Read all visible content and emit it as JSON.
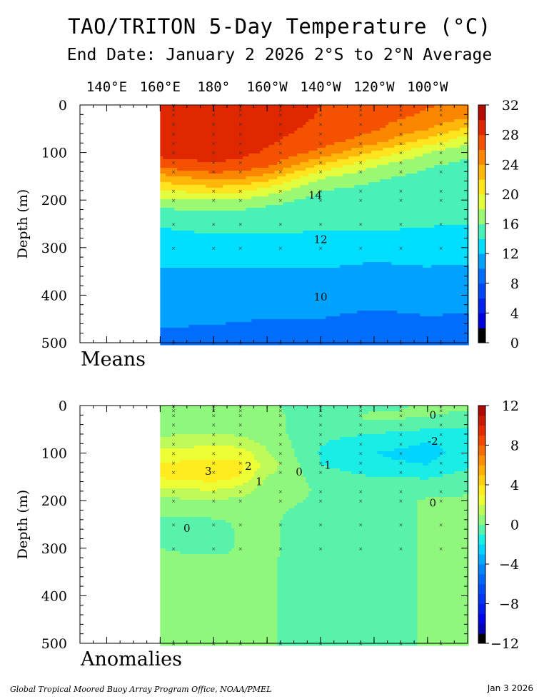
{
  "title": "TAO/TRITON 5-Day Temperature (°C)",
  "subtitle": "End Date: January 2 2026  2°S to 2°N Average",
  "footer_left": "Global Tropical Moored Buoy Array Program Office, NOAA/PMEL",
  "footer_right": "Jan  3 2026",
  "chart_data": [
    {
      "type": "heatmap",
      "panel_label": "Means",
      "xlabel": "",
      "ylabel": "Depth (m)",
      "x_tick_labels": [
        "140°E",
        "160°E",
        "180°",
        "160°W",
        "140°W",
        "120°W",
        "100°W"
      ],
      "x_ticks_lon": [
        140,
        160,
        180,
        200,
        220,
        240,
        260
      ],
      "xlim": [
        130,
        275
      ],
      "data_xlim": [
        160,
        275
      ],
      "y_ticks": [
        0,
        100,
        200,
        300,
        400,
        500
      ],
      "ylim": [
        0,
        500
      ],
      "colorbar_ticks": [
        0,
        4,
        8,
        12,
        16,
        20,
        24,
        28,
        32
      ],
      "colorbar_range": [
        0,
        32
      ],
      "grid": [
        [
          160,
          [
            29.8,
            29.6,
            29.4,
            29.2,
            28.6,
            27.2,
            23.4,
            20.6,
            17.4,
            15.4,
            14.2,
            13.6,
            12.9,
            12.3,
            11.9,
            11.5,
            11.1,
            10.6,
            10.3,
            9.9,
            9.2
          ]
        ],
        [
          180,
          [
            29.6,
            29.5,
            29.3,
            29.1,
            28.7,
            27.9,
            25.2,
            21.6,
            18.1,
            15.8,
            14.6,
            13.9,
            13.1,
            12.4,
            11.9,
            11.4,
            11.0,
            10.5,
            10.2,
            9.8,
            9.1
          ]
        ],
        [
          190,
          [
            29.3,
            29.2,
            29.0,
            28.8,
            28.4,
            27.6,
            24.7,
            21.2,
            17.8,
            15.6,
            14.6,
            13.9,
            13.0,
            12.4,
            11.9,
            11.4,
            10.9,
            10.5,
            10.1,
            9.7,
            9.0
          ]
        ],
        [
          200,
          [
            28.9,
            28.8,
            28.6,
            28.3,
            27.8,
            26.7,
            23.4,
            19.8,
            16.8,
            15.2,
            14.5,
            13.9,
            13.1,
            12.4,
            11.9,
            11.4,
            10.9,
            10.4,
            10.0,
            9.6,
            9.0
          ]
        ],
        [
          220,
          [
            28.0,
            27.9,
            27.6,
            27.1,
            25.4,
            22.0,
            18.5,
            16.3,
            15.3,
            14.7,
            14.3,
            13.8,
            13.0,
            12.4,
            11.9,
            11.4,
            10.9,
            10.4,
            10.0,
            9.6,
            9.0
          ]
        ],
        [
          240,
          [
            27.0,
            26.8,
            26.3,
            24.9,
            21.8,
            18.4,
            16.4,
            15.5,
            15.0,
            14.6,
            14.3,
            13.8,
            13.0,
            12.1,
            11.6,
            11.1,
            10.6,
            10.1,
            9.6,
            9.2,
            8.6
          ]
        ],
        [
          260,
          [
            26.2,
            25.6,
            24.1,
            21.4,
            18.0,
            16.2,
            15.5,
            15.0,
            14.6,
            14.3,
            14.1,
            13.7,
            12.9,
            12.3,
            11.8,
            11.3,
            10.8,
            10.3,
            9.9,
            9.5,
            9.0
          ]
        ],
        [
          275,
          [
            25.6,
            24.3,
            21.6,
            18.6,
            16.4,
            15.6,
            15.1,
            14.8,
            14.5,
            14.2,
            14.0,
            13.6,
            12.8,
            12.2,
            11.7,
            11.2,
            10.7,
            10.2,
            9.8,
            9.4,
            8.9
          ]
        ]
      ],
      "depths": [
        0,
        25,
        50,
        75,
        100,
        125,
        150,
        175,
        200,
        225,
        250,
        275,
        300,
        325,
        350,
        375,
        400,
        425,
        450,
        475,
        500
      ],
      "contour_labels": [
        {
          "text": "14",
          "lon": 218,
          "depth": 190
        },
        {
          "text": "12",
          "lon": 220,
          "depth": 283
        },
        {
          "text": "10",
          "lon": 220,
          "depth": 404
        }
      ],
      "mooring_longitudes": [
        165,
        180,
        190,
        205,
        220,
        235,
        250,
        265
      ]
    },
    {
      "type": "heatmap",
      "panel_label": "Anomalies",
      "xlabel": "",
      "ylabel": "Depth (m)",
      "x_tick_labels": [
        "140°E",
        "160°E",
        "180°",
        "160°W",
        "140°W",
        "120°W",
        "100°W"
      ],
      "xlim": [
        130,
        275
      ],
      "data_xlim": [
        160,
        275
      ],
      "y_ticks": [
        0,
        100,
        200,
        300,
        400,
        500
      ],
      "ylim": [
        0,
        500
      ],
      "colorbar_ticks": [
        12,
        8,
        4,
        0,
        -4,
        -8,
        -12
      ],
      "colorbar_range": [
        -12,
        12
      ],
      "grid": [
        [
          160,
          [
            0.2,
            0.3,
            0.5,
            1.4,
            2.3,
            3.2,
            3.1,
            1.8,
            0.7,
            0.1,
            -0.3,
            -0.5,
            0.0,
            0.2,
            0.2,
            0.2,
            0.1,
            0.1,
            0.1,
            0.1,
            0.1
          ]
        ],
        [
          180,
          [
            0.2,
            0.4,
            0.6,
            1.6,
            2.6,
            3.4,
            3.6,
            2.2,
            0.9,
            0.2,
            -0.2,
            -0.4,
            -0.3,
            0.2,
            0.2,
            0.2,
            0.1,
            0.1,
            0.1,
            0.1,
            0.1
          ]
        ],
        [
          190,
          [
            0.1,
            0.3,
            0.5,
            1.4,
            2.6,
            3.2,
            3.0,
            1.7,
            0.7,
            0.2,
            0.1,
            0.1,
            0.1,
            0.1,
            0.1,
            0.1,
            0.1,
            0.1,
            0.1,
            0.1,
            0.1
          ]
        ],
        [
          200,
          [
            0.1,
            0.2,
            0.3,
            0.7,
            1.1,
            1.6,
            1.0,
            0.5,
            0.2,
            0.1,
            0.1,
            0.1,
            0.1,
            0.1,
            0.1,
            0.1,
            0.1,
            0.1,
            0.1,
            0.1,
            0.1
          ]
        ],
        [
          220,
          [
            -0.3,
            -0.4,
            -0.6,
            -0.9,
            -1.1,
            -1.0,
            -0.4,
            -0.1,
            -0.1,
            -0.2,
            -0.3,
            -0.3,
            -0.3,
            -0.4,
            -0.4,
            -0.4,
            -0.4,
            -0.4,
            -0.4,
            -0.4,
            -0.4
          ]
        ],
        [
          240,
          [
            -0.2,
            0.2,
            -0.7,
            -1.5,
            -2.0,
            -1.8,
            -1.0,
            -0.5,
            -0.4,
            -0.4,
            -0.4,
            -0.4,
            -0.4,
            -0.4,
            -0.4,
            -0.4,
            -0.4,
            -0.4,
            -0.4,
            -0.4,
            -0.4
          ]
        ],
        [
          260,
          [
            0.1,
            0.0,
            -1.0,
            -2.0,
            -2.3,
            -2.0,
            -1.1,
            -0.4,
            0.1,
            0.1,
            0.1,
            0.1,
            0.1,
            0.1,
            0.1,
            0.1,
            0.1,
            0.1,
            0.1,
            0.1,
            0.1
          ]
        ],
        [
          275,
          [
            0.2,
            -0.2,
            -1.2,
            -1.8,
            -1.6,
            -1.2,
            -0.6,
            -0.1,
            0.1,
            0.1,
            0.1,
            0.1,
            0.1,
            0.1,
            0.1,
            0.1,
            0.1,
            0.1,
            0.1,
            0.1,
            0.1
          ]
        ]
      ],
      "depths": [
        0,
        25,
        50,
        75,
        100,
        125,
        150,
        175,
        200,
        225,
        250,
        275,
        300,
        325,
        350,
        375,
        400,
        425,
        450,
        475,
        500
      ],
      "contour_labels": [
        {
          "text": "3",
          "lon": 178,
          "depth": 138
        },
        {
          "text": "2",
          "lon": 193,
          "depth": 128
        },
        {
          "text": "1",
          "lon": 197,
          "depth": 160
        },
        {
          "text": "0",
          "lon": 212,
          "depth": 140
        },
        {
          "text": "-1",
          "lon": 222,
          "depth": 125
        },
        {
          "text": "-2",
          "lon": 262,
          "depth": 75
        },
        {
          "text": "0",
          "lon": 262,
          "depth": 20
        },
        {
          "text": "0",
          "lon": 262,
          "depth": 205
        },
        {
          "text": "0",
          "lon": 170,
          "depth": 258
        }
      ],
      "mooring_longitudes": [
        165,
        180,
        190,
        205,
        220,
        235,
        250,
        265
      ]
    }
  ]
}
